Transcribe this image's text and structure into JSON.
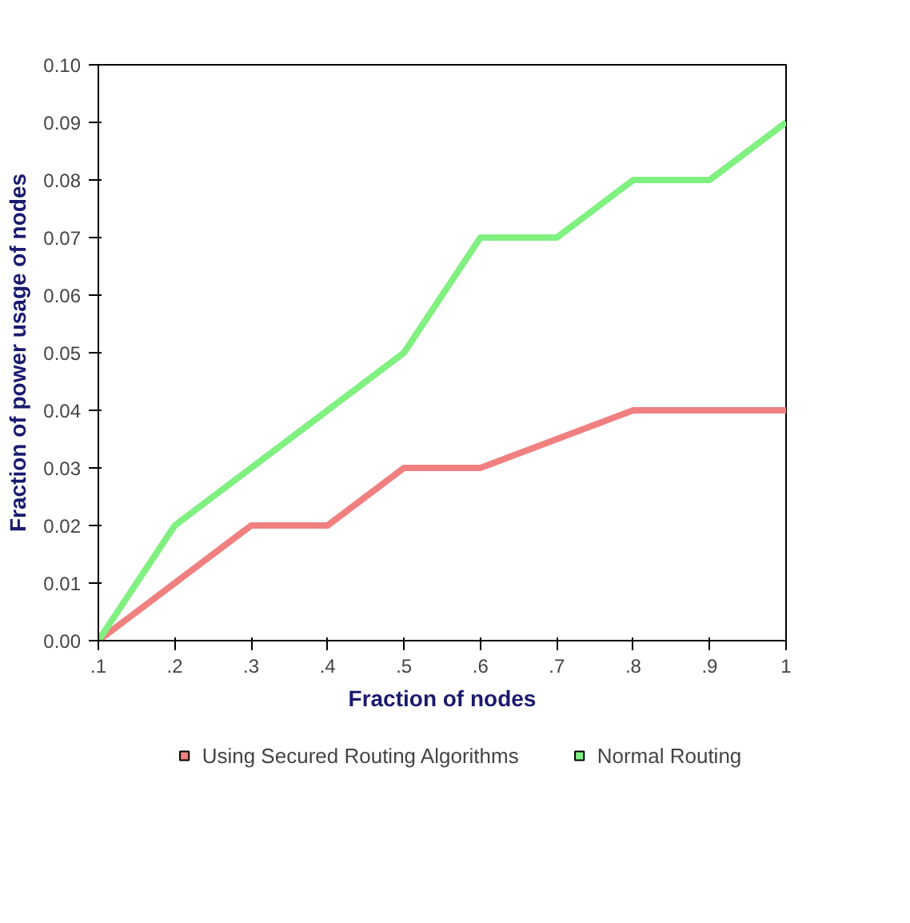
{
  "chart_data": {
    "type": "line",
    "xlabel": "Fraction of nodes",
    "ylabel": "Fraction of power usage of nodes",
    "x": [
      0.1,
      0.2,
      0.3,
      0.4,
      0.5,
      0.6,
      0.7,
      0.8,
      0.9,
      1.0
    ],
    "series": [
      {
        "name": "Using Secured Routing Algorithms",
        "color": "#f08080",
        "values": [
          0,
          0.01,
          0.02,
          0.02,
          0.03,
          0.03,
          0.035,
          0.04,
          0.04,
          0.04
        ]
      },
      {
        "name": "Normal Routing",
        "color": "#80f080",
        "values": [
          0,
          0.02,
          0.03,
          0.04,
          0.05,
          0.07,
          0.07,
          0.08,
          0.08,
          0.09
        ]
      }
    ],
    "xlim": [
      0.1,
      1.0
    ],
    "ylim": [
      0,
      0.1
    ],
    "xticks": [
      {
        "value": 0.1,
        "label": ".1"
      },
      {
        "value": 0.2,
        "label": ".2"
      },
      {
        "value": 0.3,
        "label": ".3"
      },
      {
        "value": 0.4,
        "label": ".4"
      },
      {
        "value": 0.5,
        "label": ".5"
      },
      {
        "value": 0.6,
        "label": ".6"
      },
      {
        "value": 0.7,
        "label": ".7"
      },
      {
        "value": 0.8,
        "label": ".8"
      },
      {
        "value": 0.9,
        "label": ".9"
      },
      {
        "value": 1.0,
        "label": "1"
      }
    ],
    "yticks": [
      {
        "value": 0,
        "label": "0.00"
      },
      {
        "value": 0.01,
        "label": "0.01"
      },
      {
        "value": 0.02,
        "label": "0.02"
      },
      {
        "value": 0.03,
        "label": "0.03"
      },
      {
        "value": 0.04,
        "label": "0.04"
      },
      {
        "value": 0.05,
        "label": "0.05"
      },
      {
        "value": 0.06,
        "label": "0.06"
      },
      {
        "value": 0.07,
        "label": "0.07"
      },
      {
        "value": 0.08,
        "label": "0.08"
      },
      {
        "value": 0.09,
        "label": "0.09"
      },
      {
        "value": 0.1,
        "label": "0.10"
      }
    ],
    "grid": false,
    "legend": "bottom",
    "marker": "none",
    "line_style": "solid"
  }
}
